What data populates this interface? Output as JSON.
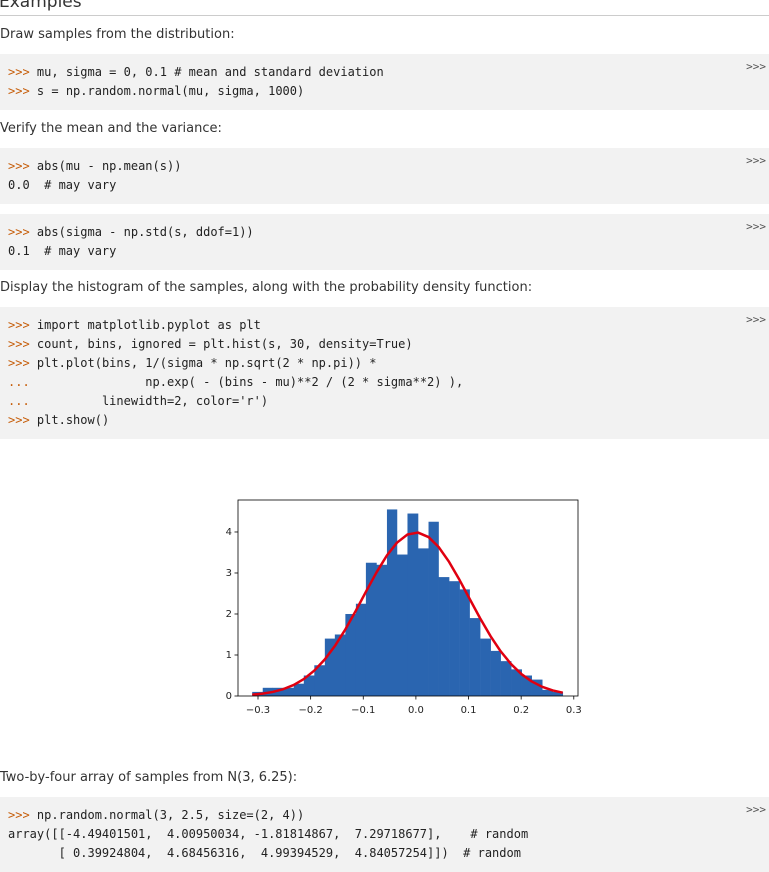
{
  "header": {
    "title": "Examples"
  },
  "copy_label": ">>>",
  "blocks": [
    {
      "text": "Draw samples from the distribution:"
    },
    {
      "code": [
        {
          "prompt": ">>>",
          "code": "mu, sigma = 0, 0.1 # mean and standard deviation"
        },
        {
          "prompt": ">>>",
          "code": "s = np.random.normal(mu, sigma, 1000)"
        }
      ]
    },
    {
      "text": "Verify the mean and the variance:"
    },
    {
      "code": [
        {
          "prompt": ">>>",
          "code": "abs(mu - np.mean(s))"
        },
        {
          "code": "0.0  # may vary"
        }
      ]
    },
    {
      "code": [
        {
          "prompt": ">>>",
          "code": "abs(sigma - np.std(s, ddof=1))"
        },
        {
          "code": "0.1  # may vary"
        }
      ]
    },
    {
      "text": "Display the histogram of the samples, along with the probability density function:"
    },
    {
      "code": [
        {
          "prompt": ">>>",
          "code": "import matplotlib.pyplot as plt"
        },
        {
          "prompt": ">>>",
          "code": "count, bins, ignored = plt.hist(s, 30, density=True)"
        },
        {
          "prompt": ">>>",
          "code": "plt.plot(bins, 1/(sigma * np.sqrt(2 * np.pi)) *"
        },
        {
          "prompt": "...",
          "code": "               np.exp( - (bins - mu)**2 / (2 * sigma**2) ),"
        },
        {
          "prompt": "...",
          "code": "         linewidth=2, color='r')"
        },
        {
          "prompt": ">>>",
          "code": "plt.show()"
        }
      ]
    },
    {
      "text": "Two-by-four array of samples from N(3, 6.25):"
    },
    {
      "code": [
        {
          "prompt": ">>>",
          "code": "np.random.normal(3, 2.5, size=(2, 4))"
        },
        {
          "code": "array([[-4.49401501,  4.00950034, -1.81814867,  7.29718677],    # random"
        },
        {
          "code": "       [ 0.39924804,  4.68456316,  4.99394529,  4.84057254]])  # random"
        }
      ]
    }
  ],
  "chart_data": {
    "type": "histogram",
    "bins": [
      -0.311,
      -0.291,
      -0.272,
      -0.252,
      -0.232,
      -0.213,
      -0.193,
      -0.173,
      -0.154,
      -0.134,
      -0.114,
      -0.095,
      -0.075,
      -0.055,
      -0.036,
      -0.016,
      0.004,
      0.024,
      0.043,
      0.063,
      0.083,
      0.102,
      0.122,
      0.142,
      0.161,
      0.181,
      0.201,
      0.22,
      0.24,
      0.26,
      0.279
    ],
    "values": [
      0.1,
      0.2,
      0.2,
      0.2,
      0.3,
      0.5,
      0.75,
      1.4,
      1.5,
      2.0,
      2.25,
      3.25,
      3.2,
      4.55,
      3.45,
      4.45,
      3.6,
      4.25,
      2.9,
      2.8,
      2.6,
      1.9,
      1.4,
      1.1,
      0.85,
      0.65,
      0.5,
      0.4,
      0.15,
      0.1
    ],
    "color": "#2a65b0",
    "curve": {
      "color": "#e00010",
      "values": [
        0.032,
        0.058,
        0.099,
        0.167,
        0.27,
        0.413,
        0.62,
        0.894,
        1.219,
        1.625,
        2.082,
        2.541,
        3.011,
        3.43,
        3.739,
        3.938,
        3.986,
        3.876,
        3.637,
        3.272,
        2.828,
        2.372,
        1.896,
        1.456,
        1.091,
        0.776,
        0.529,
        0.355,
        0.224,
        0.136,
        0.081
      ]
    },
    "xlim": [
      -0.338,
      0.308
    ],
    "ylim": [
      0,
      4.78
    ],
    "xticks": [
      {
        "value": -0.3,
        "label": "−0.3"
      },
      {
        "value": -0.2,
        "label": "−0.2"
      },
      {
        "value": -0.1,
        "label": "−0.1"
      },
      {
        "value": 0,
        "label": "0.0"
      },
      0.1,
      0.2,
      0.3
    ],
    "yticks": [
      0,
      1,
      2,
      3,
      4
    ]
  }
}
